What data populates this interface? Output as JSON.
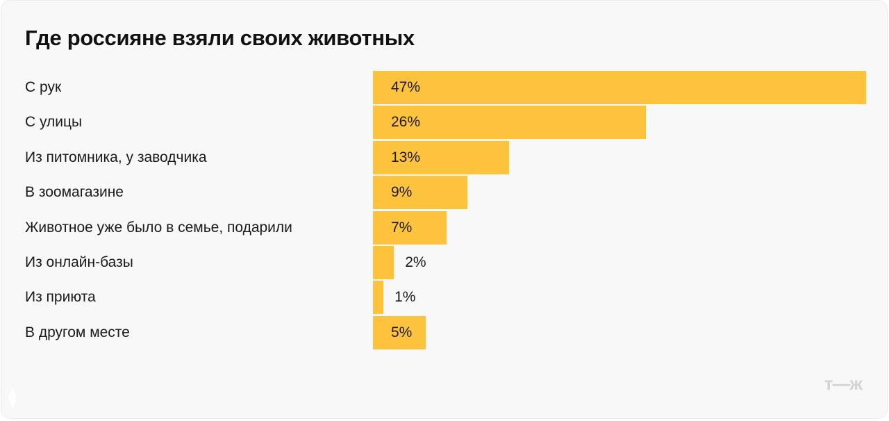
{
  "chart_data": {
    "type": "bar",
    "orientation": "horizontal",
    "title": "Где россияне взяли своих животных",
    "categories": [
      "С рук",
      "С улицы",
      "Из питомника, у заводчика",
      "В зоомагазине",
      "Животное уже было в семье, подарили",
      "Из онлайн-базы",
      "Из приюта",
      "В другом месте"
    ],
    "values": [
      47,
      26,
      13,
      9,
      7,
      2,
      1,
      5
    ],
    "value_labels": [
      "47%",
      "26%",
      "13%",
      "9%",
      "7%",
      "2%",
      "1%",
      "5%"
    ],
    "unit": "%",
    "grid": false,
    "bar_color": "#fdc33d"
  },
  "branding": {
    "logo": "т—ж"
  }
}
